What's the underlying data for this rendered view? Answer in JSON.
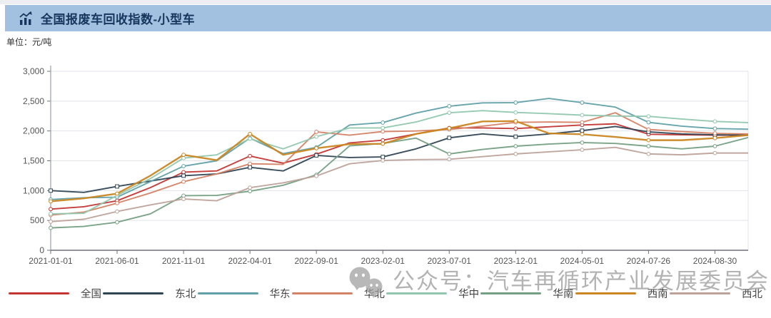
{
  "header": {
    "title": "全国报废车回收指数-小型车",
    "unit_label": "单位：元/吨"
  },
  "watermark": {
    "text": "公众号：汽车再循环产业发展委员会",
    "icon": "wechat-icon"
  },
  "chart_data": {
    "type": "line",
    "title": "全国报废车回收指数-小型车",
    "unit": "元/吨",
    "x_tick_labels": [
      "2021-01-01",
      "2021-06-01",
      "2021-11-01",
      "2022-04-01",
      "2022-09-01",
      "2023-02-01",
      "2023-07-01",
      "2023-12-01",
      "2024-05-01",
      "2024-07-26",
      "2024-08-30"
    ],
    "points_per_tick": 2,
    "ylim": [
      0,
      3000
    ],
    "y_tick_labels": [
      "0",
      "500",
      "1,000",
      "1,500",
      "2,000",
      "2,500",
      "3,000"
    ],
    "grid": true,
    "legend_position": "bottom",
    "axis_color": "#6e7079",
    "grid_color": "#e0e3ea",
    "series": [
      {
        "name": "全国",
        "color": "#c23531",
        "symbol": "circle",
        "values": [
          690,
          730,
          830,
          1050,
          1310,
          1330,
          1580,
          1460,
          1610,
          1800,
          1845,
          1950,
          2050,
          2050,
          2040,
          2070,
          2100,
          2120,
          1945,
          1935,
          1930,
          1930
        ]
      },
      {
        "name": "东北",
        "color": "#2f4554",
        "symbol": "rect",
        "values": [
          1000,
          970,
          1070,
          1160,
          1250,
          1280,
          1390,
          1330,
          1590,
          1555,
          1565,
          1700,
          1885,
          1950,
          1905,
          1950,
          2005,
          2075,
          1985,
          1950,
          1935,
          1930
        ]
      },
      {
        "name": "华东",
        "color": "#61a0a8",
        "symbol": "circle",
        "values": [
          850,
          880,
          890,
          1150,
          1410,
          1500,
          1880,
          1620,
          1725,
          2100,
          2140,
          2300,
          2415,
          2470,
          2475,
          2545,
          2475,
          2400,
          2145,
          2080,
          2040,
          2030
        ]
      },
      {
        "name": "华北",
        "color": "#d48265",
        "symbol": "circle",
        "values": [
          590,
          640,
          790,
          960,
          1150,
          1280,
          1450,
          1440,
          1985,
          1930,
          1990,
          2000,
          2025,
          2080,
          2145,
          2150,
          2145,
          2305,
          2025,
          1990,
          1960,
          1950
        ]
      },
      {
        "name": "华中",
        "color": "#91c7ae",
        "symbol": "circle",
        "values": [
          610,
          620,
          920,
          1200,
          1545,
          1600,
          1870,
          1700,
          1905,
          2050,
          2050,
          2150,
          2305,
          2340,
          2310,
          2290,
          2265,
          2250,
          2245,
          2200,
          2160,
          2140
        ]
      },
      {
        "name": "华南",
        "color": "#749f83",
        "symbol": "circle",
        "values": [
          375,
          400,
          470,
          610,
          915,
          920,
          990,
          1090,
          1265,
          1750,
          1790,
          1880,
          1615,
          1690,
          1745,
          1780,
          1805,
          1790,
          1745,
          1700,
          1745,
          1890
        ]
      },
      {
        "name": "西南",
        "color": "#ca8622",
        "symbol": "circle",
        "values": [
          820,
          870,
          950,
          1250,
          1600,
          1510,
          1950,
          1600,
          1710,
          1780,
          1785,
          1950,
          2045,
          2160,
          2165,
          1960,
          1945,
          1900,
          1845,
          1845,
          1880,
          1930
        ]
      },
      {
        "name": "西北",
        "color": "#bda29a",
        "symbol": "circle",
        "values": [
          480,
          520,
          650,
          760,
          860,
          830,
          1050,
          1130,
          1245,
          1450,
          1505,
          1520,
          1525,
          1570,
          1615,
          1650,
          1685,
          1725,
          1615,
          1600,
          1630,
          1630
        ]
      }
    ]
  }
}
